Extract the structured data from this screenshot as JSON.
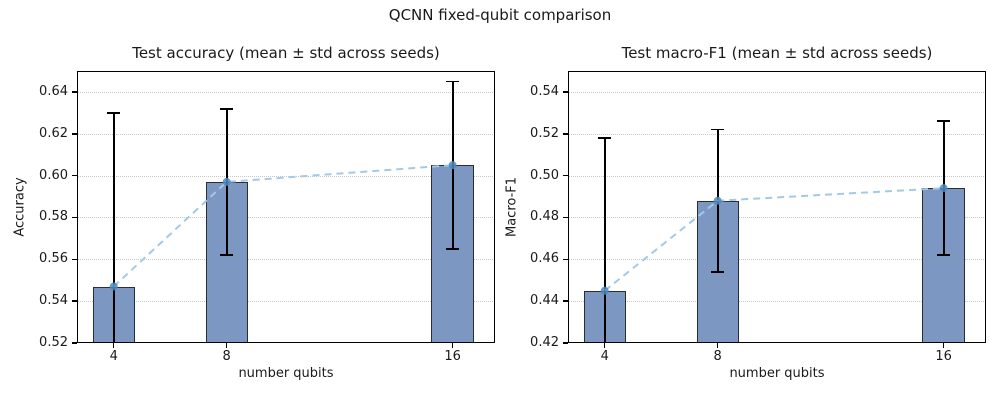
{
  "figure": {
    "suptitle": "QCNN fixed-qubit comparison"
  },
  "colors": {
    "bar_fill": "#7b97c2",
    "bar_edge": "#2a2e33",
    "error_bar": "#000000",
    "trend_line": "#a3c9e6",
    "marker": "#4d8ac0",
    "grid": "#c8c8c8",
    "axis": "#000000",
    "text": "#1a1a1a",
    "background": "#ffffff"
  },
  "chart_data": [
    {
      "type": "bar",
      "title": "Test accuracy (mean ± std across seeds)",
      "xlabel": "number qubits",
      "ylabel": "Accuracy",
      "categories": [
        "4",
        "8",
        "16"
      ],
      "bars": [
        {
          "x": 4,
          "mean": 0.547,
          "std": 0.083
        },
        {
          "x": 8,
          "mean": 0.597,
          "std": 0.035
        },
        {
          "x": 16,
          "mean": 0.605,
          "std": 0.04
        }
      ],
      "xlim": [
        2.7,
        17.5
      ],
      "ylim": [
        0.52,
        0.65
      ],
      "yticks": [
        0.52,
        0.54,
        0.56,
        0.58,
        0.6,
        0.62,
        0.64
      ],
      "bar_width_units": 1.5,
      "grid": "horizontal-dotted",
      "legend": "none",
      "trend": "dashed-line-through-means-with-circle-markers"
    },
    {
      "type": "bar",
      "title": "Test macro-F1 (mean ± std across seeds)",
      "xlabel": "number qubits",
      "ylabel": "Macro-F1",
      "categories": [
        "4",
        "8",
        "16"
      ],
      "bars": [
        {
          "x": 4,
          "mean": 0.445,
          "std": 0.073
        },
        {
          "x": 8,
          "mean": 0.488,
          "std": 0.034
        },
        {
          "x": 16,
          "mean": 0.494,
          "std": 0.032
        }
      ],
      "xlim": [
        2.7,
        17.5
      ],
      "ylim": [
        0.42,
        0.55
      ],
      "yticks": [
        0.42,
        0.44,
        0.46,
        0.48,
        0.5,
        0.52,
        0.54
      ],
      "bar_width_units": 1.5,
      "grid": "horizontal-dotted",
      "legend": "none",
      "trend": "dashed-line-through-means-with-circle-markers"
    }
  ]
}
